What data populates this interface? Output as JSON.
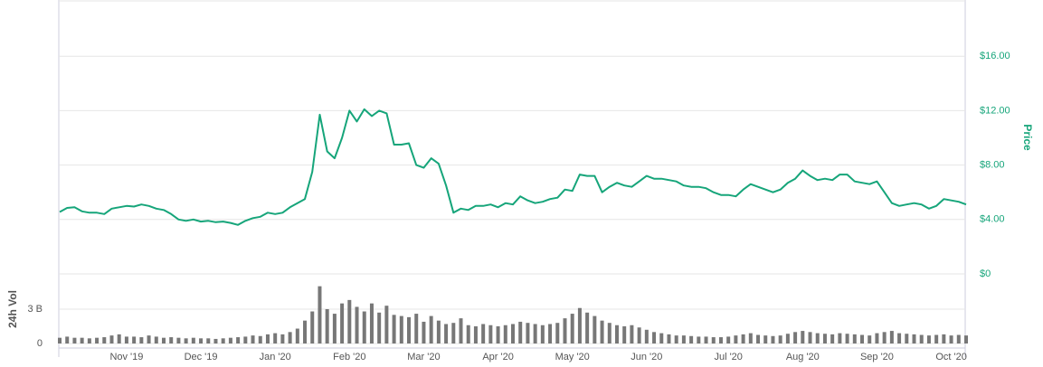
{
  "chart_data": [
    {
      "type": "line",
      "y_label": "Price",
      "color": "#16a57a",
      "values": [
        4.55,
        4.85,
        4.9,
        4.6,
        4.5,
        4.5,
        4.4,
        4.8,
        4.9,
        5.0,
        4.95,
        5.1,
        5.0,
        4.8,
        4.7,
        4.4,
        4.0,
        3.9,
        4.0,
        3.85,
        3.9,
        3.8,
        3.85,
        3.75,
        3.6,
        3.9,
        4.1,
        4.2,
        4.5,
        4.4,
        4.5,
        4.9,
        5.2,
        5.5,
        7.5,
        11.7,
        9.0,
        8.5,
        10.0,
        12.0,
        11.2,
        12.1,
        11.6,
        12.0,
        11.8,
        9.5,
        9.5,
        9.6,
        8.0,
        7.8,
        8.5,
        8.1,
        6.5,
        4.5,
        4.8,
        4.7,
        5.0,
        5.0,
        5.1,
        4.9,
        5.2,
        5.1,
        5.7,
        5.4,
        5.2,
        5.3,
        5.5,
        5.6,
        6.2,
        6.1,
        7.3,
        7.2,
        7.2,
        6.0,
        6.4,
        6.7,
        6.5,
        6.4,
        6.8,
        7.2,
        7.0,
        7.0,
        6.9,
        6.8,
        6.5,
        6.4,
        6.4,
        6.3,
        6.0,
        5.8,
        5.8,
        5.7,
        6.2,
        6.6,
        6.4,
        6.2,
        6.0,
        6.2,
        6.7,
        7.0,
        7.6,
        7.2,
        6.9,
        7.0,
        6.9,
        7.3,
        7.3,
        6.8,
        6.7,
        6.6,
        6.8,
        6.0,
        5.2,
        5.0,
        5.1,
        5.2,
        5.1,
        4.8,
        5.0,
        5.5,
        5.4,
        5.3,
        5.1
      ],
      "ylim": [
        0,
        20
      ],
      "yticks": [
        {
          "value": 0,
          "label": "$0"
        },
        {
          "value": 4,
          "label": "$4.00"
        },
        {
          "value": 8,
          "label": "$8.00"
        },
        {
          "value": 12,
          "label": "$12.00"
        },
        {
          "value": 16,
          "label": "$16.00"
        }
      ],
      "grid": true
    },
    {
      "type": "bar",
      "y_label": "24h Vol",
      "color": "#777777",
      "categories": [
        null,
        null,
        null,
        null,
        null,
        null,
        null,
        null,
        null,
        "Nov '19",
        null,
        null,
        null,
        null,
        null,
        null,
        null,
        null,
        null,
        "Dec '19",
        null,
        null,
        null,
        null,
        null,
        null,
        null,
        null,
        null,
        "Jan '20",
        null,
        null,
        null,
        null,
        null,
        null,
        null,
        null,
        null,
        "Feb '20",
        null,
        null,
        null,
        null,
        null,
        null,
        null,
        null,
        null,
        "Mar '20",
        null,
        null,
        null,
        null,
        null,
        null,
        null,
        null,
        null,
        "Apr '20",
        null,
        null,
        null,
        null,
        null,
        null,
        null,
        null,
        null,
        "May '20",
        null,
        null,
        null,
        null,
        null,
        null,
        null,
        null,
        null,
        "Jun '20",
        null,
        null,
        null,
        null,
        null,
        null,
        null,
        null,
        null,
        null,
        "Jul '20",
        null,
        null,
        null,
        null,
        null,
        null,
        null,
        null,
        null,
        "Aug '20",
        null,
        null,
        null,
        null,
        null,
        null,
        null,
        null,
        null,
        "Sep '20",
        null,
        null,
        null,
        null,
        null,
        null,
        null,
        null,
        null,
        "Oct '20",
        null,
        null
      ],
      "values": [
        0.5,
        0.6,
        0.5,
        0.5,
        0.45,
        0.5,
        0.55,
        0.7,
        0.8,
        0.6,
        0.6,
        0.55,
        0.7,
        0.6,
        0.5,
        0.55,
        0.5,
        0.45,
        0.5,
        0.45,
        0.45,
        0.4,
        0.45,
        0.5,
        0.55,
        0.6,
        0.7,
        0.65,
        0.8,
        0.9,
        0.8,
        1.0,
        1.3,
        2.0,
        2.8,
        5.0,
        3.0,
        2.6,
        3.5,
        3.8,
        3.2,
        2.8,
        3.5,
        2.7,
        3.3,
        2.5,
        2.4,
        2.3,
        2.6,
        1.9,
        2.4,
        2.0,
        1.7,
        1.8,
        2.2,
        1.6,
        1.5,
        1.7,
        1.6,
        1.5,
        1.6,
        1.7,
        1.9,
        1.8,
        1.7,
        1.6,
        1.7,
        1.8,
        2.2,
        2.6,
        3.1,
        2.7,
        2.4,
        2.0,
        1.8,
        1.6,
        1.5,
        1.6,
        1.4,
        1.2,
        1.0,
        0.9,
        0.8,
        0.7,
        0.7,
        0.65,
        0.6,
        0.6,
        0.55,
        0.55,
        0.6,
        0.7,
        0.8,
        0.9,
        0.75,
        0.7,
        0.65,
        0.7,
        0.85,
        1.0,
        1.1,
        1.0,
        0.9,
        0.85,
        0.8,
        0.9,
        0.85,
        0.8,
        0.75,
        0.7,
        0.9,
        1.0,
        1.1,
        0.9,
        0.85,
        0.8,
        0.75,
        0.7,
        0.75,
        0.8,
        0.7,
        0.75,
        0.7
      ],
      "ylim": [
        0,
        6
      ],
      "yticks": [
        0,
        {
          "value": 3,
          "label": "3 B"
        }
      ],
      "grid": true
    }
  ]
}
